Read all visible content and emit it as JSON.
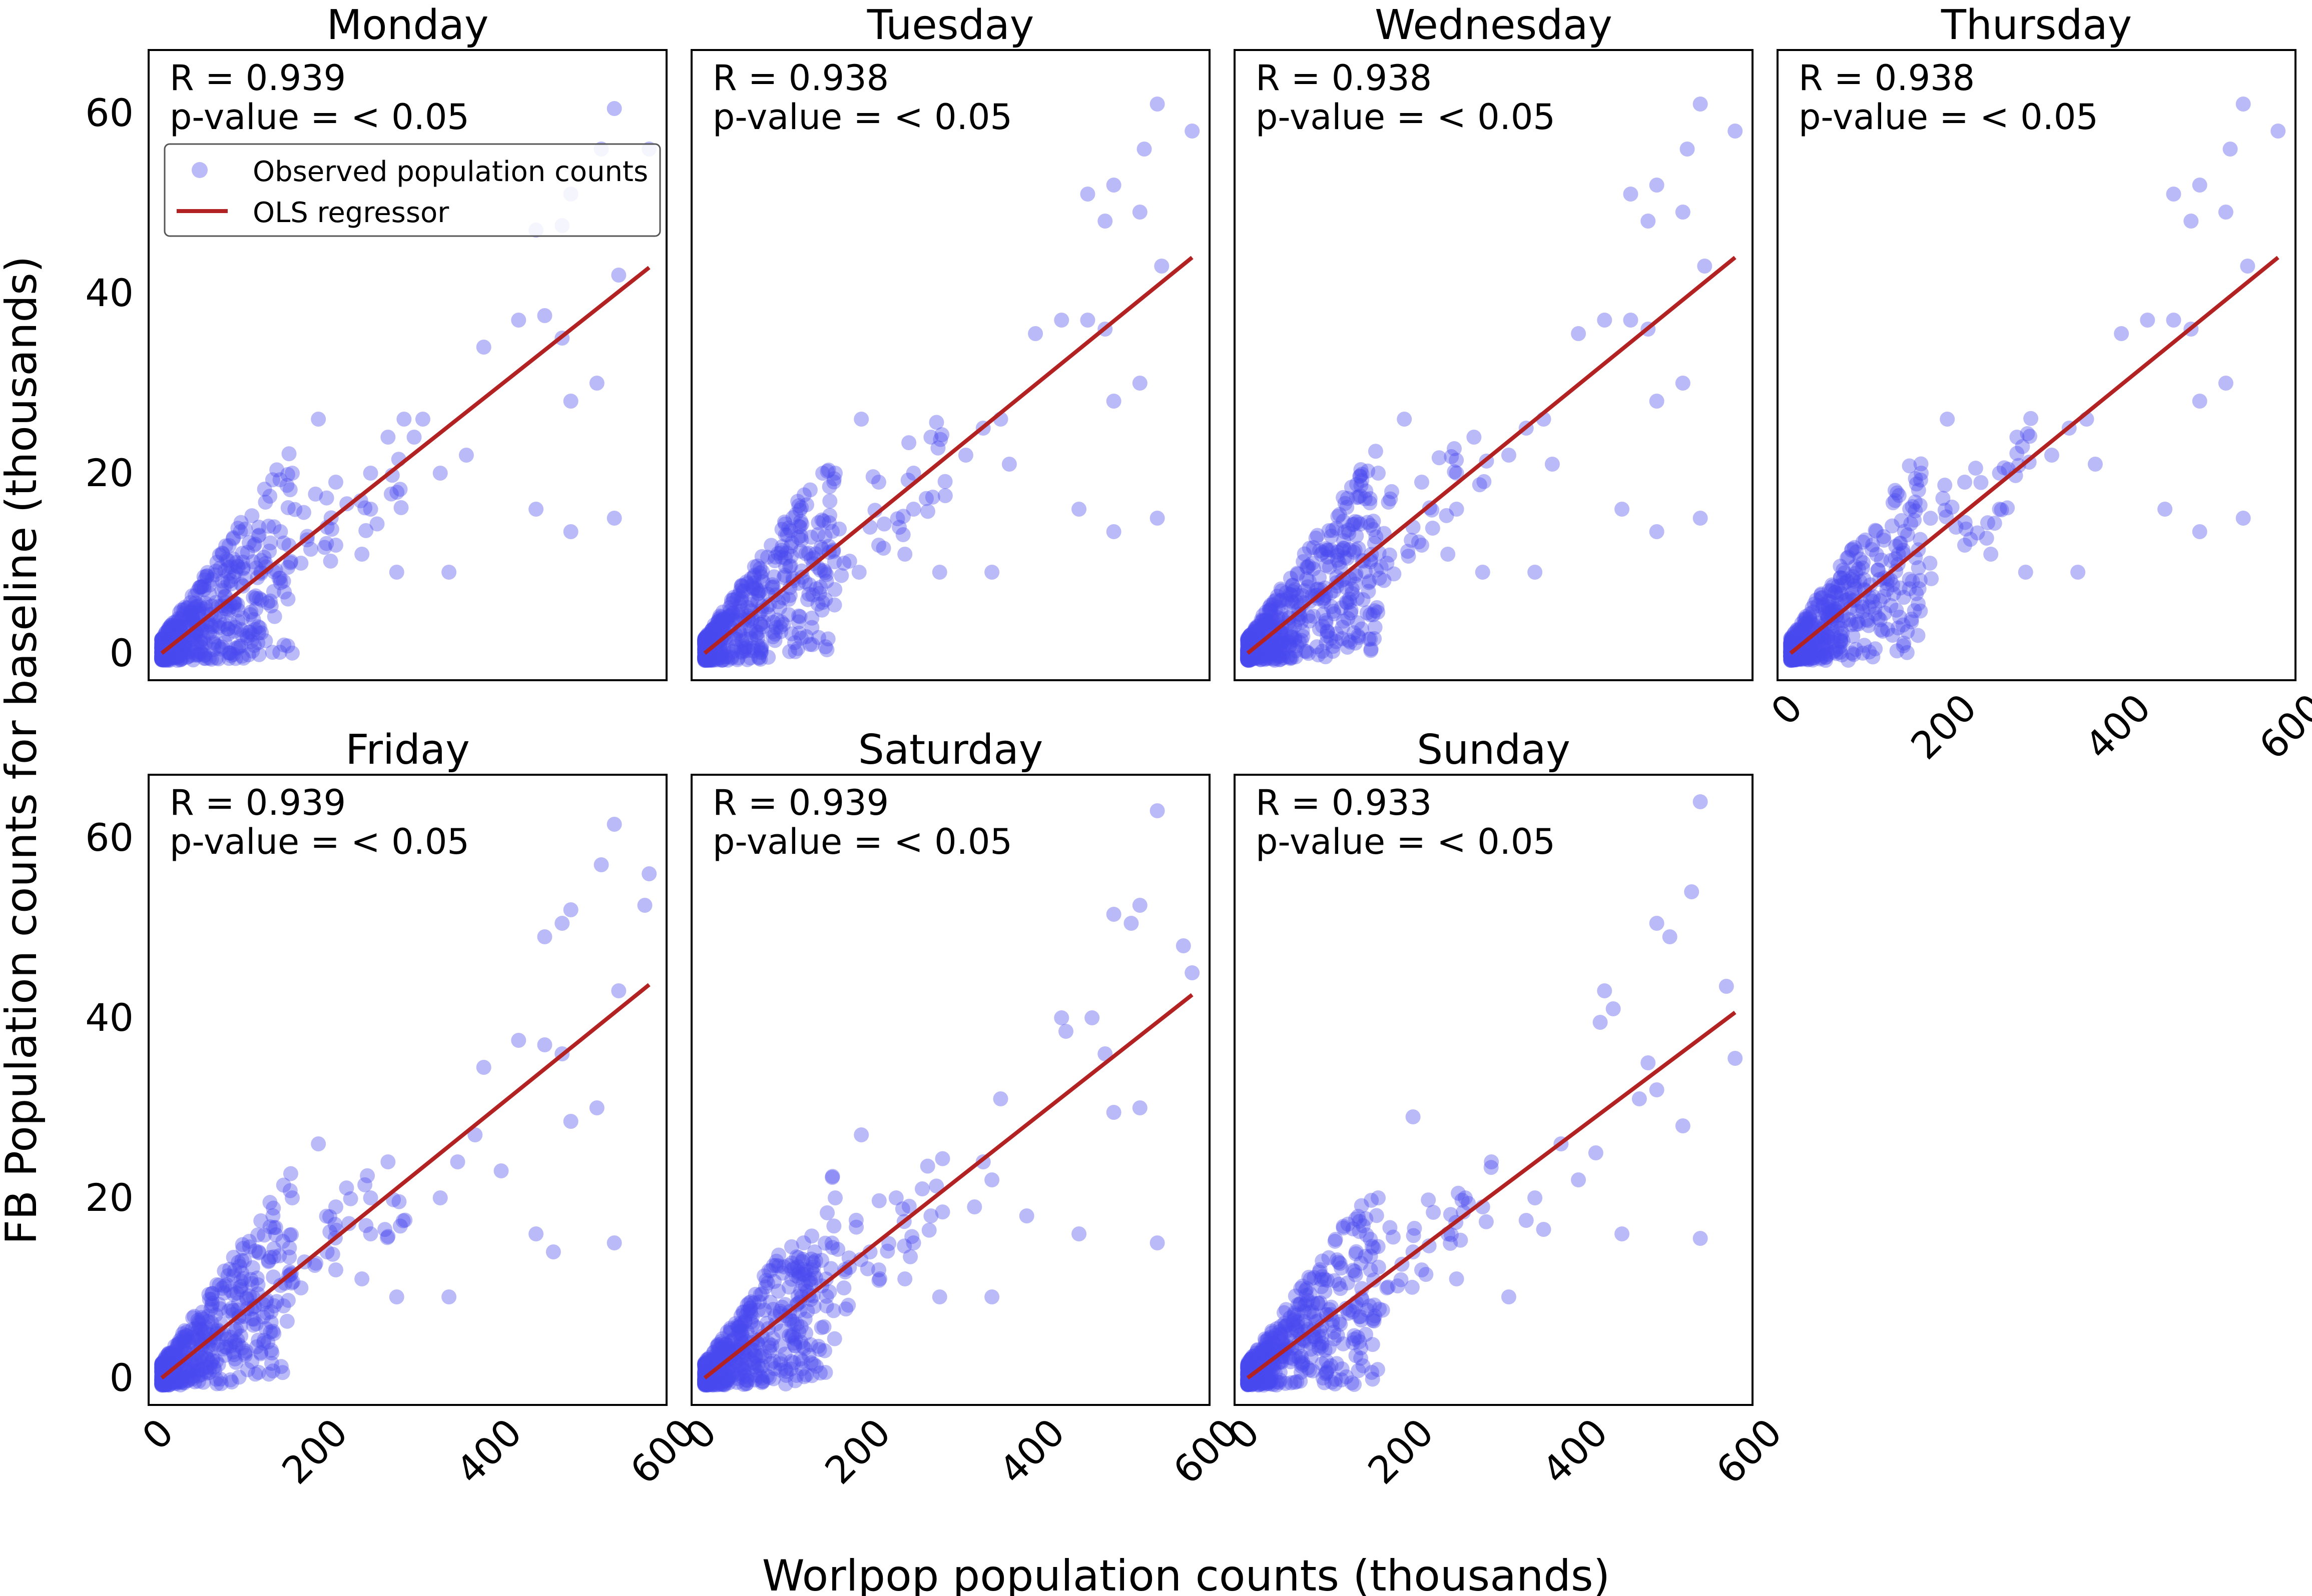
{
  "figure": {
    "ylabel": "FB Population counts for baseline (thousands)",
    "xlabel": "Worlpop population counts (thousands)",
    "legend": {
      "placement": "upper-left of first panel",
      "points_label": "Observed population counts",
      "line_label": "OLS regressor"
    }
  },
  "colors": {
    "points": "#4a4af0",
    "line": "#b22222",
    "frame": "#000000"
  },
  "chart_data": [
    {
      "type": "scatter",
      "title": "Monday",
      "r_text": "R = 0.939",
      "p_text": "p-value = < 0.05",
      "xlim": [
        -15,
        580
      ],
      "ylim": [
        -3,
        67
      ],
      "xticks": [
        0,
        200,
        400,
        600
      ],
      "yticks": [
        0,
        20,
        40,
        60
      ],
      "fit": {
        "slope": 0.0765,
        "x": [
          0,
          560
        ]
      },
      "outliers": [
        [
          560,
          56
        ],
        [
          520,
          60.5
        ],
        [
          505,
          56
        ],
        [
          470,
          51
        ],
        [
          430,
          47
        ],
        [
          460,
          47.5
        ],
        [
          525,
          42
        ],
        [
          440,
          37.5
        ],
        [
          460,
          35
        ],
        [
          410,
          37
        ],
        [
          370,
          34
        ],
        [
          500,
          30
        ],
        [
          470,
          28
        ],
        [
          520,
          15
        ],
        [
          430,
          16
        ],
        [
          470,
          13.5
        ],
        [
          300,
          26
        ],
        [
          290,
          24
        ],
        [
          320,
          20
        ],
        [
          350,
          22
        ],
        [
          200,
          19
        ],
        [
          240,
          20
        ],
        [
          180,
          26
        ],
        [
          260,
          24
        ],
        [
          240,
          16
        ],
        [
          230,
          11
        ],
        [
          270,
          9
        ],
        [
          330,
          9
        ],
        [
          150,
          20
        ],
        [
          190,
          14
        ],
        [
          200,
          12
        ],
        [
          160,
          10
        ],
        [
          140,
          8
        ]
      ]
    },
    {
      "type": "scatter",
      "title": "Tuesday",
      "r_text": "R = 0.938",
      "p_text": "p-value = < 0.05",
      "xlim": [
        -15,
        580
      ],
      "ylim": [
        -3,
        67
      ],
      "xticks": [
        0,
        200,
        400,
        600
      ],
      "yticks": [
        0,
        20,
        40,
        60
      ],
      "fit": {
        "slope": 0.0785,
        "x": [
          0,
          560
        ]
      },
      "outliers": [
        [
          560,
          58
        ],
        [
          520,
          61
        ],
        [
          505,
          56
        ],
        [
          470,
          52
        ],
        [
          440,
          51
        ],
        [
          460,
          48
        ],
        [
          500,
          49
        ],
        [
          525,
          43
        ],
        [
          440,
          37
        ],
        [
          460,
          36
        ],
        [
          410,
          37
        ],
        [
          380,
          35.5
        ],
        [
          500,
          30
        ],
        [
          470,
          28
        ],
        [
          520,
          15
        ],
        [
          430,
          16
        ],
        [
          470,
          13.5
        ],
        [
          340,
          26
        ],
        [
          320,
          25
        ],
        [
          300,
          22
        ],
        [
          350,
          21
        ],
        [
          200,
          19
        ],
        [
          240,
          20
        ],
        [
          180,
          26
        ],
        [
          260,
          24
        ],
        [
          240,
          16
        ],
        [
          230,
          11
        ],
        [
          270,
          9
        ],
        [
          330,
          9
        ],
        [
          150,
          20
        ],
        [
          190,
          14
        ],
        [
          200,
          12
        ],
        [
          160,
          10
        ],
        [
          140,
          8
        ]
      ]
    },
    {
      "type": "scatter",
      "title": "Wednesday",
      "r_text": "R = 0.938",
      "p_text": "p-value = < 0.05",
      "xlim": [
        -15,
        580
      ],
      "ylim": [
        -3,
        67
      ],
      "xticks": [
        0,
        200,
        400,
        600
      ],
      "yticks": [
        0,
        20,
        40,
        60
      ],
      "fit": {
        "slope": 0.0785,
        "x": [
          0,
          560
        ]
      },
      "outliers": [
        [
          560,
          58
        ],
        [
          520,
          61
        ],
        [
          505,
          56
        ],
        [
          470,
          52
        ],
        [
          440,
          51
        ],
        [
          460,
          48
        ],
        [
          500,
          49
        ],
        [
          525,
          43
        ],
        [
          440,
          37
        ],
        [
          460,
          36
        ],
        [
          410,
          37
        ],
        [
          380,
          35.5
        ],
        [
          500,
          30
        ],
        [
          470,
          28
        ],
        [
          520,
          15
        ],
        [
          430,
          16
        ],
        [
          470,
          13.5
        ],
        [
          340,
          26
        ],
        [
          320,
          25
        ],
        [
          300,
          22
        ],
        [
          350,
          21
        ],
        [
          200,
          19
        ],
        [
          240,
          20
        ],
        [
          180,
          26
        ],
        [
          260,
          24
        ],
        [
          240,
          16
        ],
        [
          230,
          11
        ],
        [
          270,
          9
        ],
        [
          330,
          9
        ],
        [
          150,
          20
        ],
        [
          190,
          14
        ],
        [
          200,
          12
        ],
        [
          160,
          10
        ],
        [
          140,
          8
        ]
      ]
    },
    {
      "type": "scatter",
      "title": "Thursday",
      "r_text": "R = 0.938",
      "p_text": "p-value = < 0.05",
      "xlim": [
        -15,
        580
      ],
      "ylim": [
        -3,
        67
      ],
      "xticks": [
        0,
        200,
        400,
        600
      ],
      "yticks": [
        0,
        20,
        40,
        60
      ],
      "fit": {
        "slope": 0.0785,
        "x": [
          0,
          560
        ]
      },
      "outliers": [
        [
          560,
          58
        ],
        [
          520,
          61
        ],
        [
          505,
          56
        ],
        [
          470,
          52
        ],
        [
          440,
          51
        ],
        [
          460,
          48
        ],
        [
          500,
          49
        ],
        [
          525,
          43
        ],
        [
          440,
          37
        ],
        [
          460,
          36
        ],
        [
          410,
          37
        ],
        [
          380,
          35.5
        ],
        [
          500,
          30
        ],
        [
          470,
          28
        ],
        [
          520,
          15
        ],
        [
          430,
          16
        ],
        [
          470,
          13.5
        ],
        [
          340,
          26
        ],
        [
          320,
          25
        ],
        [
          300,
          22
        ],
        [
          350,
          21
        ],
        [
          200,
          19
        ],
        [
          240,
          20
        ],
        [
          180,
          26
        ],
        [
          260,
          24
        ],
        [
          240,
          16
        ],
        [
          230,
          11
        ],
        [
          270,
          9
        ],
        [
          330,
          9
        ],
        [
          150,
          20
        ],
        [
          190,
          14
        ],
        [
          200,
          12
        ],
        [
          160,
          10
        ],
        [
          140,
          8
        ]
      ]
    },
    {
      "type": "scatter",
      "title": "Friday",
      "r_text": "R = 0.939",
      "p_text": "p-value = < 0.05",
      "xlim": [
        -15,
        580
      ],
      "ylim": [
        -3,
        67
      ],
      "xticks": [
        0,
        200,
        400,
        600
      ],
      "yticks": [
        0,
        20,
        40,
        60
      ],
      "fit": {
        "slope": 0.078,
        "x": [
          0,
          560
        ]
      },
      "outliers": [
        [
          560,
          56
        ],
        [
          520,
          61.5
        ],
        [
          505,
          57
        ],
        [
          470,
          52
        ],
        [
          440,
          49
        ],
        [
          460,
          50.5
        ],
        [
          555,
          52.5
        ],
        [
          525,
          43
        ],
        [
          440,
          37
        ],
        [
          460,
          36
        ],
        [
          410,
          37.5
        ],
        [
          370,
          34.5
        ],
        [
          500,
          30
        ],
        [
          470,
          28.5
        ],
        [
          520,
          15
        ],
        [
          430,
          16
        ],
        [
          450,
          14
        ],
        [
          360,
          27
        ],
        [
          340,
          24
        ],
        [
          320,
          20
        ],
        [
          390,
          23
        ],
        [
          200,
          19
        ],
        [
          240,
          20
        ],
        [
          180,
          26
        ],
        [
          260,
          24
        ],
        [
          240,
          16
        ],
        [
          230,
          11
        ],
        [
          270,
          9
        ],
        [
          330,
          9
        ],
        [
          150,
          20
        ],
        [
          190,
          14
        ],
        [
          200,
          12
        ],
        [
          160,
          10
        ],
        [
          140,
          8
        ]
      ]
    },
    {
      "type": "scatter",
      "title": "Saturday",
      "r_text": "R = 0.939",
      "p_text": "p-value = < 0.05",
      "xlim": [
        -15,
        580
      ],
      "ylim": [
        -3,
        67
      ],
      "xticks": [
        0,
        200,
        400,
        600
      ],
      "yticks": [
        0,
        20,
        40,
        60
      ],
      "fit": {
        "slope": 0.076,
        "x": [
          0,
          560
        ]
      },
      "outliers": [
        [
          520,
          63
        ],
        [
          500,
          52.5
        ],
        [
          470,
          51.5
        ],
        [
          490,
          50.5
        ],
        [
          550,
          48
        ],
        [
          560,
          45
        ],
        [
          445,
          40
        ],
        [
          460,
          36
        ],
        [
          410,
          40
        ],
        [
          415,
          38.5
        ],
        [
          500,
          30
        ],
        [
          470,
          29.5
        ],
        [
          520,
          15
        ],
        [
          430,
          16
        ],
        [
          370,
          18
        ],
        [
          330,
          22
        ],
        [
          320,
          24
        ],
        [
          310,
          19
        ],
        [
          340,
          31
        ],
        [
          250,
          21
        ],
        [
          220,
          20
        ],
        [
          180,
          27
        ],
        [
          260,
          18
        ],
        [
          240,
          15
        ],
        [
          230,
          11
        ],
        [
          270,
          9
        ],
        [
          330,
          9
        ],
        [
          150,
          20
        ],
        [
          190,
          14
        ],
        [
          200,
          12
        ],
        [
          160,
          10
        ],
        [
          140,
          8
        ]
      ]
    },
    {
      "type": "scatter",
      "title": "Sunday",
      "r_text": "R = 0.933",
      "p_text": "p-value = < 0.05",
      "xlim": [
        -15,
        580
      ],
      "ylim": [
        -3,
        67
      ],
      "xticks": [
        0,
        200,
        400,
        600
      ],
      "yticks": [
        0,
        20,
        40,
        60
      ],
      "fit": {
        "slope": 0.0725,
        "x": [
          0,
          560
        ]
      },
      "outliers": [
        [
          520,
          64
        ],
        [
          510,
          54
        ],
        [
          470,
          50.5
        ],
        [
          485,
          49
        ],
        [
          550,
          43.5
        ],
        [
          560,
          35.5
        ],
        [
          410,
          43
        ],
        [
          420,
          41
        ],
        [
          405,
          39.5
        ],
        [
          460,
          35
        ],
        [
          450,
          31
        ],
        [
          500,
          28
        ],
        [
          470,
          32
        ],
        [
          520,
          15.5
        ],
        [
          430,
          16
        ],
        [
          400,
          25
        ],
        [
          380,
          22
        ],
        [
          330,
          20
        ],
        [
          320,
          17.5
        ],
        [
          340,
          16.5
        ],
        [
          360,
          26
        ],
        [
          250,
          20
        ],
        [
          270,
          19
        ],
        [
          190,
          29
        ],
        [
          280,
          24
        ],
        [
          230,
          16
        ],
        [
          240,
          11
        ],
        [
          300,
          9
        ],
        [
          150,
          20
        ],
        [
          190,
          14
        ],
        [
          200,
          12
        ],
        [
          160,
          10
        ],
        [
          140,
          8
        ]
      ]
    }
  ]
}
